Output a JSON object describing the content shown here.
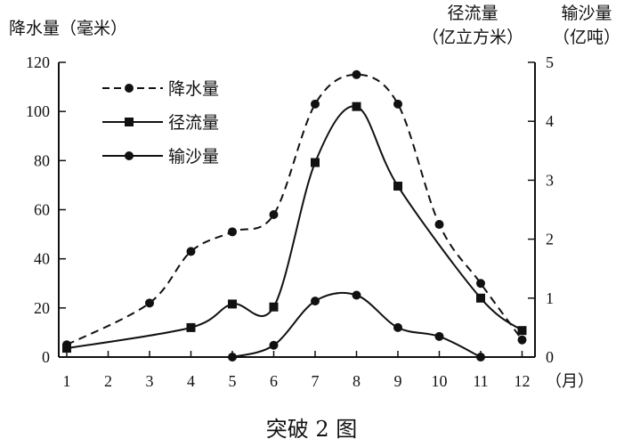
{
  "chart_data": {
    "type": "line",
    "caption": "突破 2 图",
    "x": [
      1,
      2,
      3,
      4,
      5,
      6,
      7,
      8,
      9,
      10,
      11,
      12
    ],
    "x_unit": "（月）",
    "y_left": {
      "label": "降水量（毫米）",
      "range": [
        0,
        120
      ],
      "ticks": [
        "0",
        "20",
        "40",
        "60",
        "80",
        "100",
        "120"
      ]
    },
    "y_right": {
      "label_line1": "径流量",
      "label_line2": "（亿立方米）",
      "range": [
        0,
        5
      ],
      "ticks": [
        "0",
        "1",
        "2",
        "3",
        "4",
        "5"
      ]
    },
    "y_right2": {
      "label_line1": "输沙量",
      "label_line2": "（亿吨）"
    },
    "legend_placement": "top-left",
    "series": [
      {
        "name": "降水量",
        "axis": "left",
        "style": "dashed",
        "marker": "circle",
        "x": [
          1,
          3,
          4,
          5,
          6,
          7,
          8,
          9,
          10,
          11,
          12
        ],
        "values": [
          5,
          22,
          43,
          51,
          58,
          103,
          115,
          103,
          54,
          30,
          7
        ]
      },
      {
        "name": "径流量",
        "axis": "right",
        "style": "solid",
        "marker": "square",
        "x": [
          1,
          4,
          5,
          6,
          7,
          8,
          9,
          11,
          12
        ],
        "values": [
          0.15,
          0.5,
          0.9,
          0.85,
          3.3,
          4.25,
          2.9,
          1.0,
          0.45
        ]
      },
      {
        "name": "输沙量",
        "axis": "right",
        "style": "solid",
        "marker": "circle",
        "x": [
          5,
          6,
          7,
          8,
          9,
          10,
          11
        ],
        "values": [
          0,
          0.2,
          0.95,
          1.05,
          0.5,
          0.35,
          0
        ]
      }
    ]
  }
}
